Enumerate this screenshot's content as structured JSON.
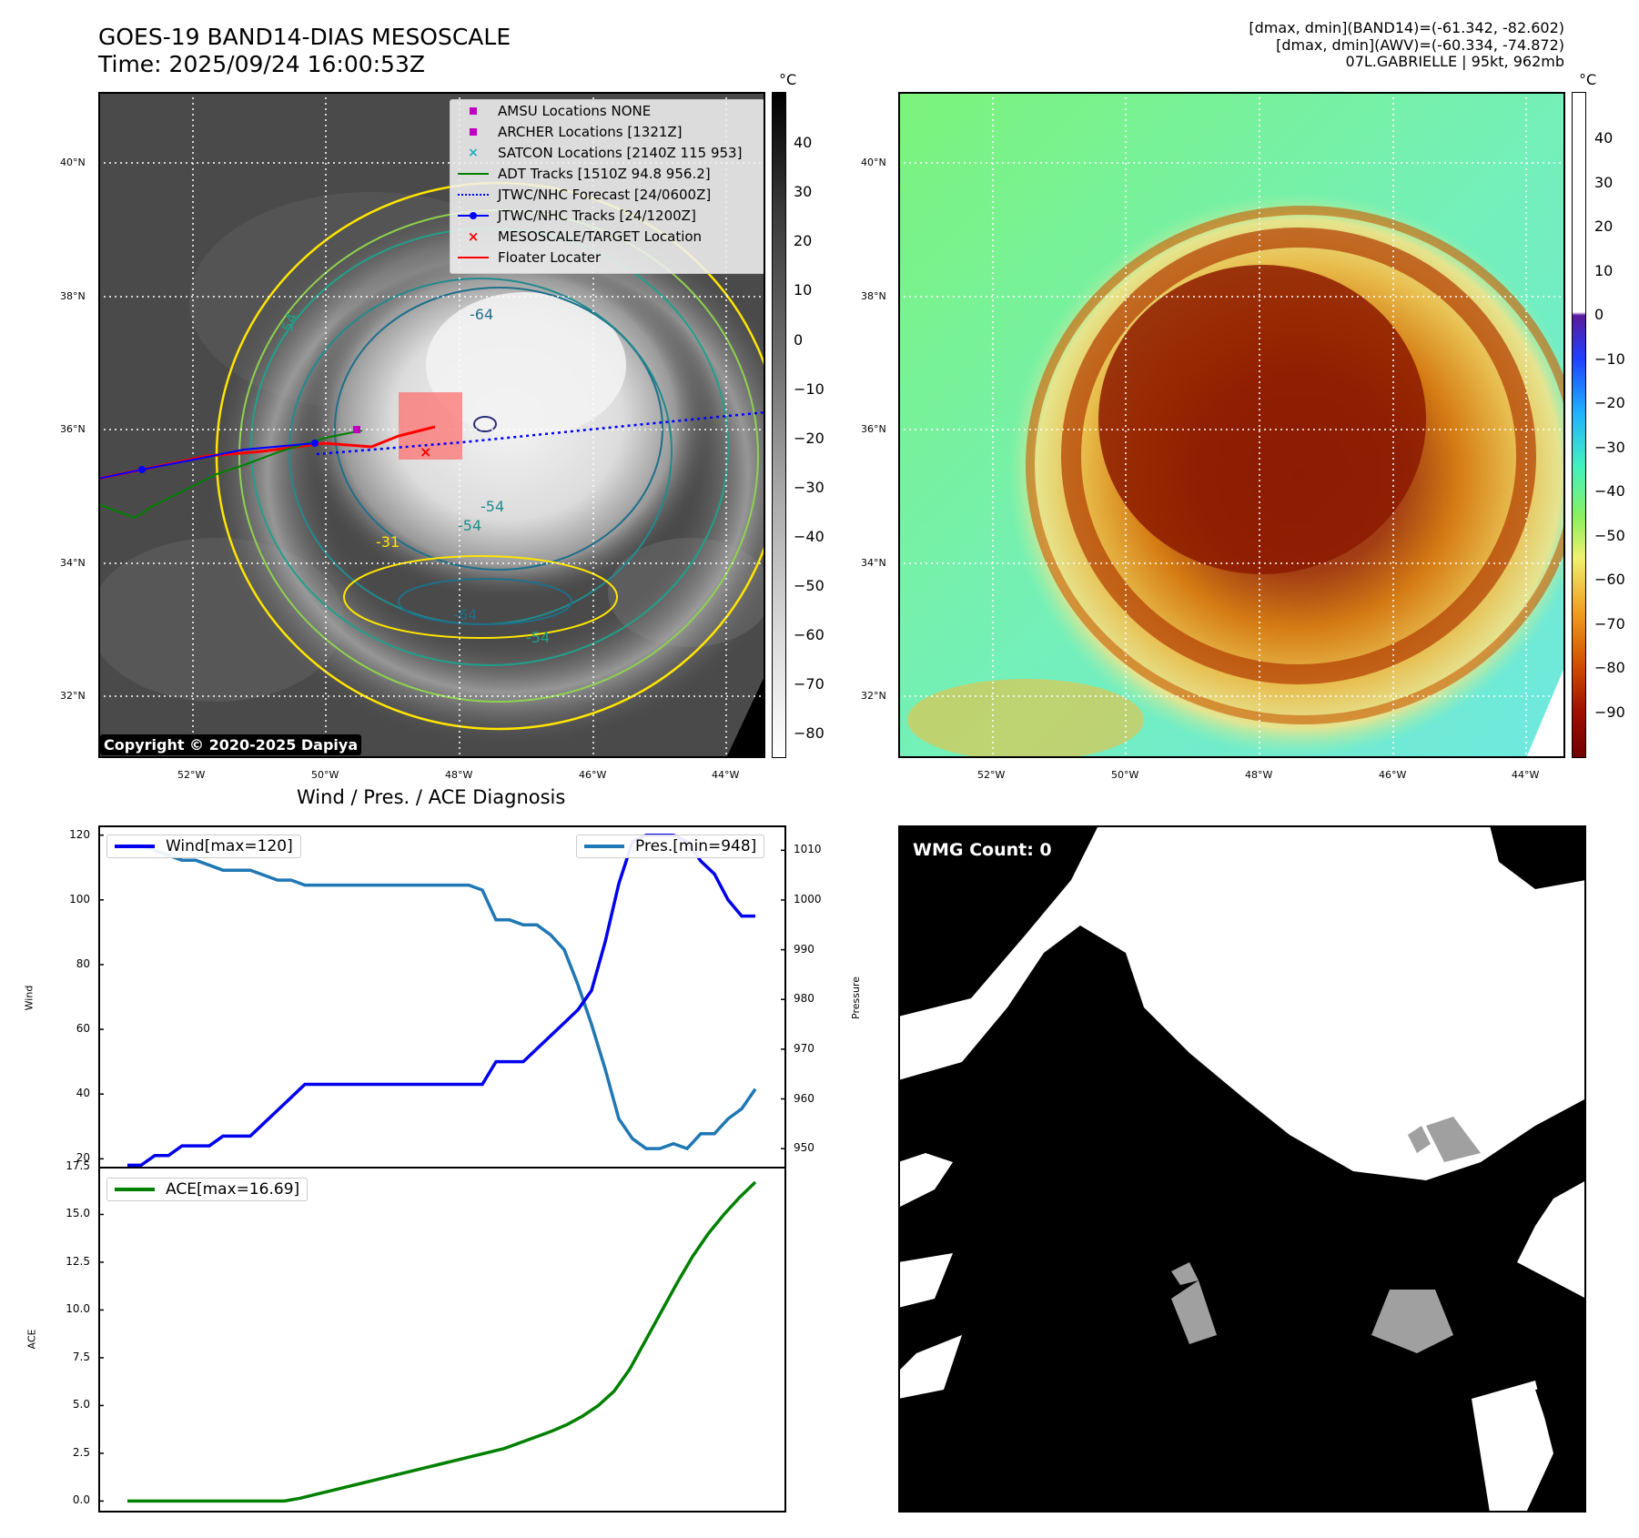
{
  "top_left": {
    "title_line1": "GOES-19 BAND14-DIAS MESOSCALE",
    "title_line2": "Time: 2025/09/24 16:00:53Z",
    "lat_labels": [
      "40°N",
      "38°N",
      "36°N",
      "34°N",
      "32°N"
    ],
    "lon_labels": [
      "52°W",
      "50°W",
      "48°W",
      "46°W",
      "44°W"
    ],
    "colorbar_unit": "°C",
    "colorbar_ticks": [
      "40",
      "30",
      "20",
      "10",
      "0",
      "−10",
      "−20",
      "−30",
      "−40",
      "−50",
      "−60",
      "−70",
      "−80"
    ],
    "contour_labels": [
      "-64",
      "-54",
      "-54",
      "-54",
      "-64",
      "-54",
      "-31"
    ],
    "legend": [
      {
        "label": "AMSU Locations NONE",
        "color": "#c000c0"
      },
      {
        "label": "ARCHER Locations [1321Z]",
        "color": "#c000c0"
      },
      {
        "label": "SATCON Locations [2140Z 115 953]",
        "color": "#1ab0c0"
      },
      {
        "label": "ADT Tracks [1510Z 94.8 956.2]",
        "color": "#008000"
      },
      {
        "label": "JTWC/NHC Forecast [24/0600Z]",
        "color": "#0000ff"
      },
      {
        "label": "JTWC/NHC Tracks [24/1200Z]",
        "color": "#0000ff"
      },
      {
        "label": "MESOSCALE/TARGET Location",
        "color": "#ff0000"
      },
      {
        "label": "Floater Locater",
        "color": "#ff0000"
      }
    ],
    "copyright": "Copyright © 2020-2025 Dapiya"
  },
  "top_right": {
    "stats_line1": "[dmax, dmin](BAND14)=(-61.342, -82.602)",
    "stats_line2": "[dmax, dmin](AWV)=(-60.334, -74.872)",
    "stats_line3": "07L.GABRIELLE | 95kt, 962mb",
    "lat_labels": [
      "40°N",
      "38°N",
      "36°N",
      "34°N",
      "32°N"
    ],
    "lon_labels": [
      "52°W",
      "50°W",
      "48°W",
      "46°W",
      "44°W"
    ],
    "colorbar_unit": "°C",
    "colorbar_ticks": [
      "40",
      "30",
      "20",
      "10",
      "0",
      "−10",
      "−20",
      "−30",
      "−40",
      "−50",
      "−60",
      "−70",
      "−80",
      "−90"
    ]
  },
  "wmg": {
    "badge": "WMG Count: 0"
  },
  "chart_data": [
    {
      "type": "line",
      "title": "Wind / Pres. / ACE Diagnosis",
      "ylabel": "Wind",
      "ylabel_right": "Pressure",
      "ylim": [
        17,
        123
      ],
      "ylim_right": [
        946,
        1015
      ],
      "yticks": [
        20,
        40,
        60,
        80,
        100,
        120
      ],
      "yticks_right": [
        950,
        960,
        970,
        980,
        990,
        1000,
        1010
      ],
      "x_count": 47,
      "series": [
        {
          "name": "Wind[max=120]",
          "color": "#0000ee",
          "values": [
            18,
            18,
            21,
            21,
            24,
            24,
            24,
            27,
            27,
            27,
            31,
            35,
            39,
            43,
            43,
            43,
            43,
            43,
            43,
            43,
            43,
            43,
            43,
            43,
            43,
            43,
            43,
            50,
            50,
            50,
            54,
            58,
            62,
            66,
            72,
            87,
            105,
            118,
            120,
            120,
            120,
            118,
            112,
            108,
            100,
            95,
            95
          ]
        },
        {
          "name": "Pres.[min=948]",
          "color": "#1f77b4",
          "axis": "right",
          "values": [
            1011,
            1011,
            1010,
            1009,
            1008,
            1008,
            1007,
            1006,
            1006,
            1006,
            1005,
            1004,
            1004,
            1003,
            1003,
            1003,
            1003,
            1003,
            1003,
            1003,
            1003,
            1003,
            1003,
            1003,
            1003,
            1003,
            1002,
            996,
            996,
            995,
            995,
            993,
            990,
            983,
            975,
            966,
            956,
            952,
            950,
            950,
            951,
            950,
            953,
            953,
            956,
            958,
            962
          ]
        }
      ]
    },
    {
      "type": "line",
      "ylabel": "ACE",
      "ylim": [
        -0.6,
        17.5
      ],
      "yticks": [
        0.0,
        2.5,
        5.0,
        7.5,
        10.0,
        12.5,
        15.0,
        17.5
      ],
      "yticklabels": [
        "0.0",
        "2.5",
        "5.0",
        "7.5",
        "10.0",
        "12.5",
        "15.0",
        "17.5"
      ],
      "series": [
        {
          "name": "ACE[max=16.69]",
          "color": "#008000",
          "values": [
            0,
            0,
            0,
            0,
            0,
            0,
            0,
            0,
            0,
            0,
            0,
            0.15,
            0.35,
            0.55,
            0.75,
            0.95,
            1.15,
            1.35,
            1.55,
            1.75,
            1.95,
            2.15,
            2.35,
            2.55,
            2.75,
            3.05,
            3.35,
            3.65,
            4.0,
            4.45,
            5.0,
            5.75,
            6.9,
            8.4,
            9.9,
            11.4,
            12.8,
            14.0,
            15.0,
            15.9,
            16.69
          ]
        }
      ]
    }
  ]
}
